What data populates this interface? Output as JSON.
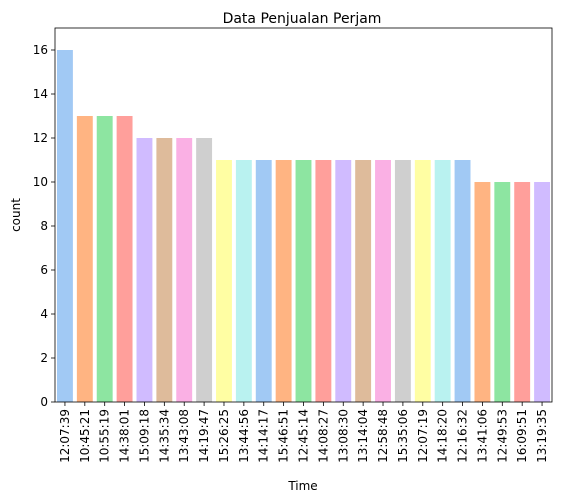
{
  "chart_data": {
    "type": "bar",
    "title": "Data Penjualan Perjam",
    "xlabel": "Time",
    "ylabel": "count",
    "ylim": [
      0,
      17
    ],
    "yticks": [
      0,
      2,
      4,
      6,
      8,
      10,
      12,
      14,
      16
    ],
    "grid": false,
    "categories": [
      "12:07:39",
      "10:45:21",
      "10:55:19",
      "14:38:01",
      "15:09:18",
      "14:35:34",
      "13:43:08",
      "14:19:47",
      "15:26:25",
      "13:44:56",
      "14:14:17",
      "15:46:51",
      "12:45:14",
      "14:08:27",
      "13:08:30",
      "13:14:04",
      "12:58:48",
      "15:35:06",
      "12:07:19",
      "14:18:20",
      "12:16:32",
      "13:41:06",
      "12:49:53",
      "16:09:51",
      "13:19:35"
    ],
    "values": [
      16,
      13,
      13,
      13,
      12,
      12,
      12,
      12,
      11,
      11,
      11,
      11,
      11,
      11,
      11,
      11,
      11,
      11,
      11,
      11,
      11,
      10,
      10,
      10,
      10
    ],
    "colors": [
      "#a1c9f4",
      "#ffb482",
      "#8de5a1",
      "#ff9f9b",
      "#d0bbff",
      "#debb9b",
      "#fab0e4",
      "#cfcfcf",
      "#fffea3",
      "#b9f2f0"
    ]
  }
}
